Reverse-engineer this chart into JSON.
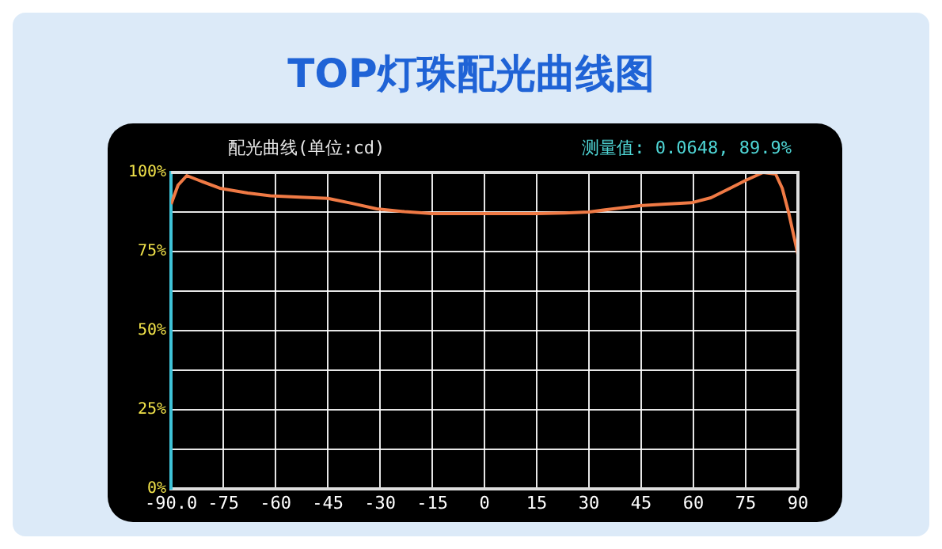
{
  "chart_data": {
    "type": "line",
    "title": "TOP灯珠配光曲线图",
    "subtitle": "配光曲线(单位:cd)",
    "annotations": [
      "测量值: 0.0648, 89.9%"
    ],
    "x": [
      -90,
      -88,
      -85.5,
      -82,
      -76,
      -68,
      -61.5,
      -53,
      -45,
      -38,
      -31,
      -23,
      -15,
      -8,
      0,
      8,
      15,
      23,
      30,
      37,
      44.5,
      52,
      59.4,
      65,
      70.5,
      75,
      78,
      80,
      83.6,
      85.5,
      87.4,
      89,
      90
    ],
    "series": [
      {
        "color": "#f07a45",
        "values": [
          90,
          96,
          99,
          97.5,
          95,
          93.5,
          92.6,
          92.2,
          91.8,
          90.2,
          88.5,
          87.6,
          87,
          87,
          87,
          87,
          87,
          87.2,
          87.5,
          88.5,
          89.5,
          90,
          90.4,
          92,
          95,
          97.5,
          99,
          100,
          99.5,
          95,
          87,
          79,
          74
        ]
      }
    ],
    "xlim": [
      -90,
      90
    ],
    "xticks": [
      {
        "value": -90,
        "label": "-90.0"
      },
      -75,
      -60,
      -45,
      -30,
      -15,
      0,
      15,
      30,
      45,
      60,
      75,
      90
    ],
    "ylim": [
      0,
      100
    ],
    "yticks": [
      {
        "value": 0,
        "label": "0%"
      },
      {
        "value": 12.5,
        "label": null
      },
      {
        "value": 25,
        "label": "25%"
      },
      {
        "value": 37.5,
        "label": null
      },
      {
        "value": 50,
        "label": "50%"
      },
      {
        "value": 62.5,
        "label": null
      },
      {
        "value": 75,
        "label": "75%"
      },
      {
        "value": 87.5,
        "label": null
      },
      {
        "value": 100,
        "label": "100%"
      }
    ],
    "grid": true,
    "marker": "none",
    "line_style": "solid"
  }
}
